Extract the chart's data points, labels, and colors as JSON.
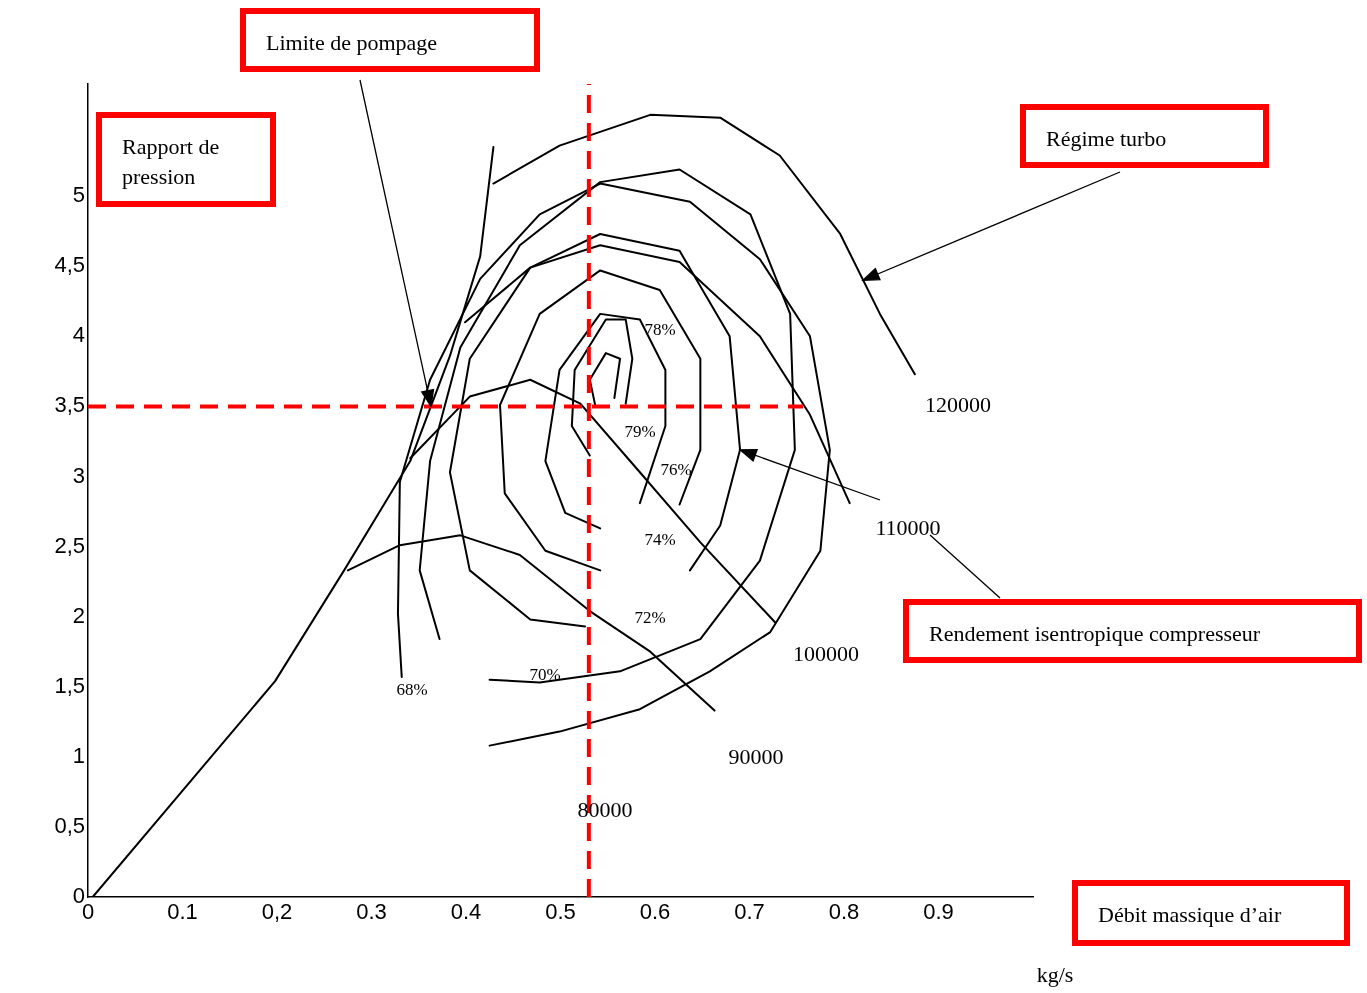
{
  "chart_data": {
    "type": "line",
    "xlabel": "Débit massique d’air",
    "ylabel": "Rapport de pression",
    "xlim": [
      0,
      1.0
    ],
    "ylim": [
      0,
      5.8
    ],
    "xticks": [
      0,
      0.1,
      {
        "value": 0.2,
        "label": "0,2"
      },
      0.3,
      0.4,
      0.5,
      0.6,
      0.7,
      0.8,
      0.9
    ],
    "yticks": [
      0,
      {
        "value": 0.5,
        "label": "0,5"
      },
      1,
      {
        "value": 1.5,
        "label": "1,5"
      },
      2,
      {
        "value": 2.5,
        "label": "2,5"
      },
      3,
      {
        "value": 3.5,
        "label": "3,5"
      },
      4,
      {
        "value": 4.5,
        "label": "4,5"
      },
      5
    ],
    "grid": false,
    "legend": false,
    "marker": "none",
    "line_style": "solid",
    "series": [
      {
        "color": "#000000",
        "x": [
          0.005,
          0.198,
          0.271,
          0.341,
          0.383,
          0.415,
          0.429
        ],
        "values": [
          0,
          1.54,
          2.33,
          3.11,
          3.86,
          4.57,
          5.35
        ]
      },
      {
        "color": "#000000",
        "x": [
          0.429,
          0.499,
          0.595,
          0.669,
          0.732,
          0.796,
          0.838,
          0.875
        ],
        "values": [
          5.09,
          5.36,
          5.58,
          5.56,
          5.29,
          4.73,
          4.16,
          3.73
        ]
      },
      {
        "color": "#000000",
        "x": [
          0.399,
          0.468,
          0.542,
          0.626,
          0.711,
          0.764,
          0.806
        ],
        "values": [
          4.1,
          4.49,
          4.65,
          4.53,
          4.0,
          3.44,
          2.81
        ]
      },
      {
        "color": "#000000",
        "x": [
          0.341,
          0.404,
          0.468,
          0.521,
          0.584,
          0.648,
          0.727
        ],
        "values": [
          3.13,
          3.57,
          3.69,
          3.52,
          3.03,
          2.53,
          1.96
        ]
      },
      {
        "color": "#000000",
        "x": [
          0.275,
          0.33,
          0.394,
          0.457,
          0.531,
          0.595,
          0.663
        ],
        "values": [
          2.33,
          2.51,
          2.58,
          2.44,
          2.04,
          1.75,
          1.33
        ]
      },
      {
        "color": "#000000",
        "x": [
          0.425,
          0.499,
          0.584,
          0.658,
          0.722,
          0.775,
          0.785,
          0.764,
          0.711,
          0.637,
          0.542,
          0.478,
          0.415,
          0.362,
          0.33,
          0.328,
          0.332
        ],
        "values": [
          1.08,
          1.18,
          1.34,
          1.61,
          1.89,
          2.47,
          3.19,
          4.0,
          4.55,
          4.96,
          5.09,
          4.87,
          4.41,
          3.69,
          2.96,
          2.02,
          1.57
        ]
      },
      {
        "color": "#000000",
        "x": [
          0.425,
          0.478,
          0.563,
          0.648,
          0.711,
          0.748,
          0.743,
          0.701,
          0.626,
          0.542,
          0.457,
          0.394,
          0.362,
          0.351,
          0.372
        ],
        "values": [
          1.55,
          1.53,
          1.61,
          1.84,
          2.4,
          3.19,
          4.16,
          4.87,
          5.19,
          5.1,
          4.65,
          3.92,
          3.11,
          2.33,
          1.84
        ]
      },
      {
        "color": "#000000",
        "x": [
          0.526,
          0.468,
          0.404,
          0.383,
          0.404,
          0.468,
          0.542,
          0.626,
          0.679,
          0.69,
          0.669,
          0.637
        ],
        "values": [
          1.93,
          1.98,
          2.33,
          3.03,
          3.84,
          4.49,
          4.73,
          4.61,
          4.0,
          3.19,
          2.65,
          2.33
        ]
      },
      {
        "color": "#000000",
        "x": [
          0.542,
          0.484,
          0.441,
          0.436,
          0.478,
          0.542,
          0.605,
          0.648,
          0.648,
          0.626
        ],
        "values": [
          2.33,
          2.47,
          2.88,
          3.51,
          4.16,
          4.47,
          4.33,
          3.84,
          3.19,
          2.8
        ]
      },
      {
        "color": "#000000",
        "x": [
          0.542,
          0.505,
          0.484,
          0.499,
          0.542,
          0.584,
          0.611,
          0.611,
          0.584
        ],
        "values": [
          2.63,
          2.74,
          3.11,
          3.76,
          4.16,
          4.12,
          3.76,
          3.36,
          2.81
        ]
      },
      {
        "color": "#000000",
        "x": [
          0.531,
          0.512,
          0.515,
          0.548,
          0.569,
          0.576,
          0.569
        ],
        "values": [
          3.15,
          3.36,
          3.76,
          4.12,
          4.12,
          3.84,
          3.52
        ]
      },
      {
        "color": "#000000",
        "x": [
          0.537,
          0.531,
          0.548,
          0.563,
          0.557
        ],
        "values": [
          3.5,
          3.69,
          3.88,
          3.84,
          3.56
        ]
      }
    ],
    "ref_lines": [
      {
        "axis": "x",
        "value": 0.53,
        "color": "#ff0000",
        "line_style": "dashed"
      },
      {
        "axis": "y",
        "value": 3.5,
        "color": "#ff0000",
        "line_style": "dashed"
      }
    ],
    "annotations": [
      {
        "text": "Limite de pompage",
        "x": 0.363,
        "y": 3.5
      },
      {
        "text": "Régime turbo",
        "x": 0.82,
        "y": 4.4
      },
      "Rendement isentropique compresseur",
      "kg/s",
      "120000",
      {
        "text": "110000",
        "x": 0.69,
        "y": 3.19
      },
      "100000",
      "90000",
      "80000",
      "78%",
      "79%",
      "76%",
      "74%",
      "72%",
      "70%",
      "68%"
    ]
  }
}
